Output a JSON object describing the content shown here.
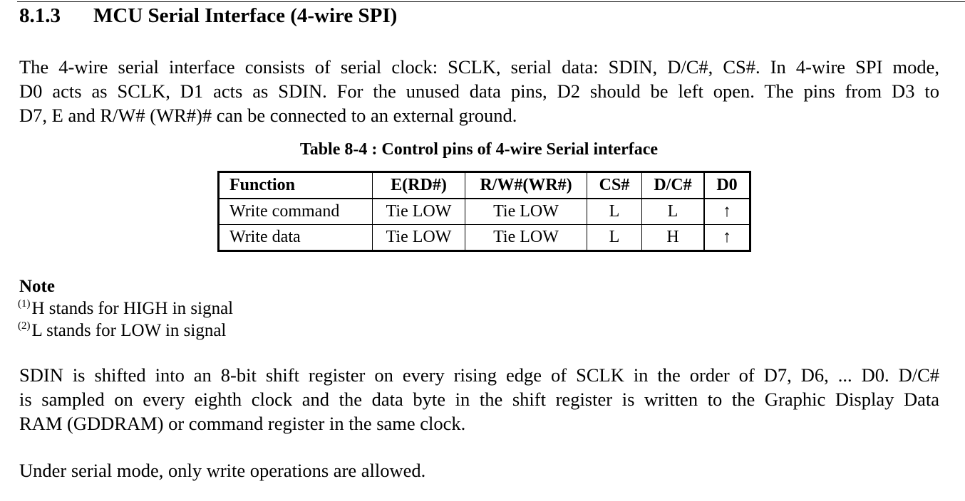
{
  "section": {
    "number": "8.1.3",
    "title": "MCU Serial Interface (4-wire SPI)"
  },
  "intro": {
    "lines": [
      "The 4-wire serial interface consists of serial clock: SCLK, serial data: SDIN, D/C#, CS#. In 4-wire SPI mode,",
      "D0 acts as SCLK, D1 acts as SDIN. For the unused data pins, D2 should be left open. The pins from D3 to",
      "D7, E and R/W# (WR#)# can be connected to an external ground."
    ]
  },
  "table": {
    "caption": "Table 8-4 : Control pins of 4-wire Serial interface",
    "headers": [
      "Function",
      "E(RD#)",
      "R/W#(WR#)",
      "CS#",
      "D/C#",
      "D0"
    ],
    "rows": [
      [
        "Write command",
        "Tie LOW",
        "Tie LOW",
        "L",
        "L",
        "↑"
      ],
      [
        "Write data",
        "Tie LOW",
        "Tie LOW",
        "L",
        "H",
        "↑"
      ]
    ]
  },
  "note": {
    "title": "Note",
    "items": [
      {
        "marker": "(1)",
        "text": "H stands for HIGH in signal"
      },
      {
        "marker": "(2)",
        "text": "L stands for LOW in signal"
      }
    ]
  },
  "body2": {
    "lines": [
      "SDIN is shifted into an 8-bit shift register on every rising edge of SCLK in the order of D7, D6, ... D0. D/C#",
      "is sampled on every eighth clock and the data byte in the shift register is written to the Graphic Display Data",
      "RAM (GDDRAM) or command register in the same clock."
    ]
  },
  "body3": {
    "text": "Under serial mode, only write operations are allowed."
  }
}
